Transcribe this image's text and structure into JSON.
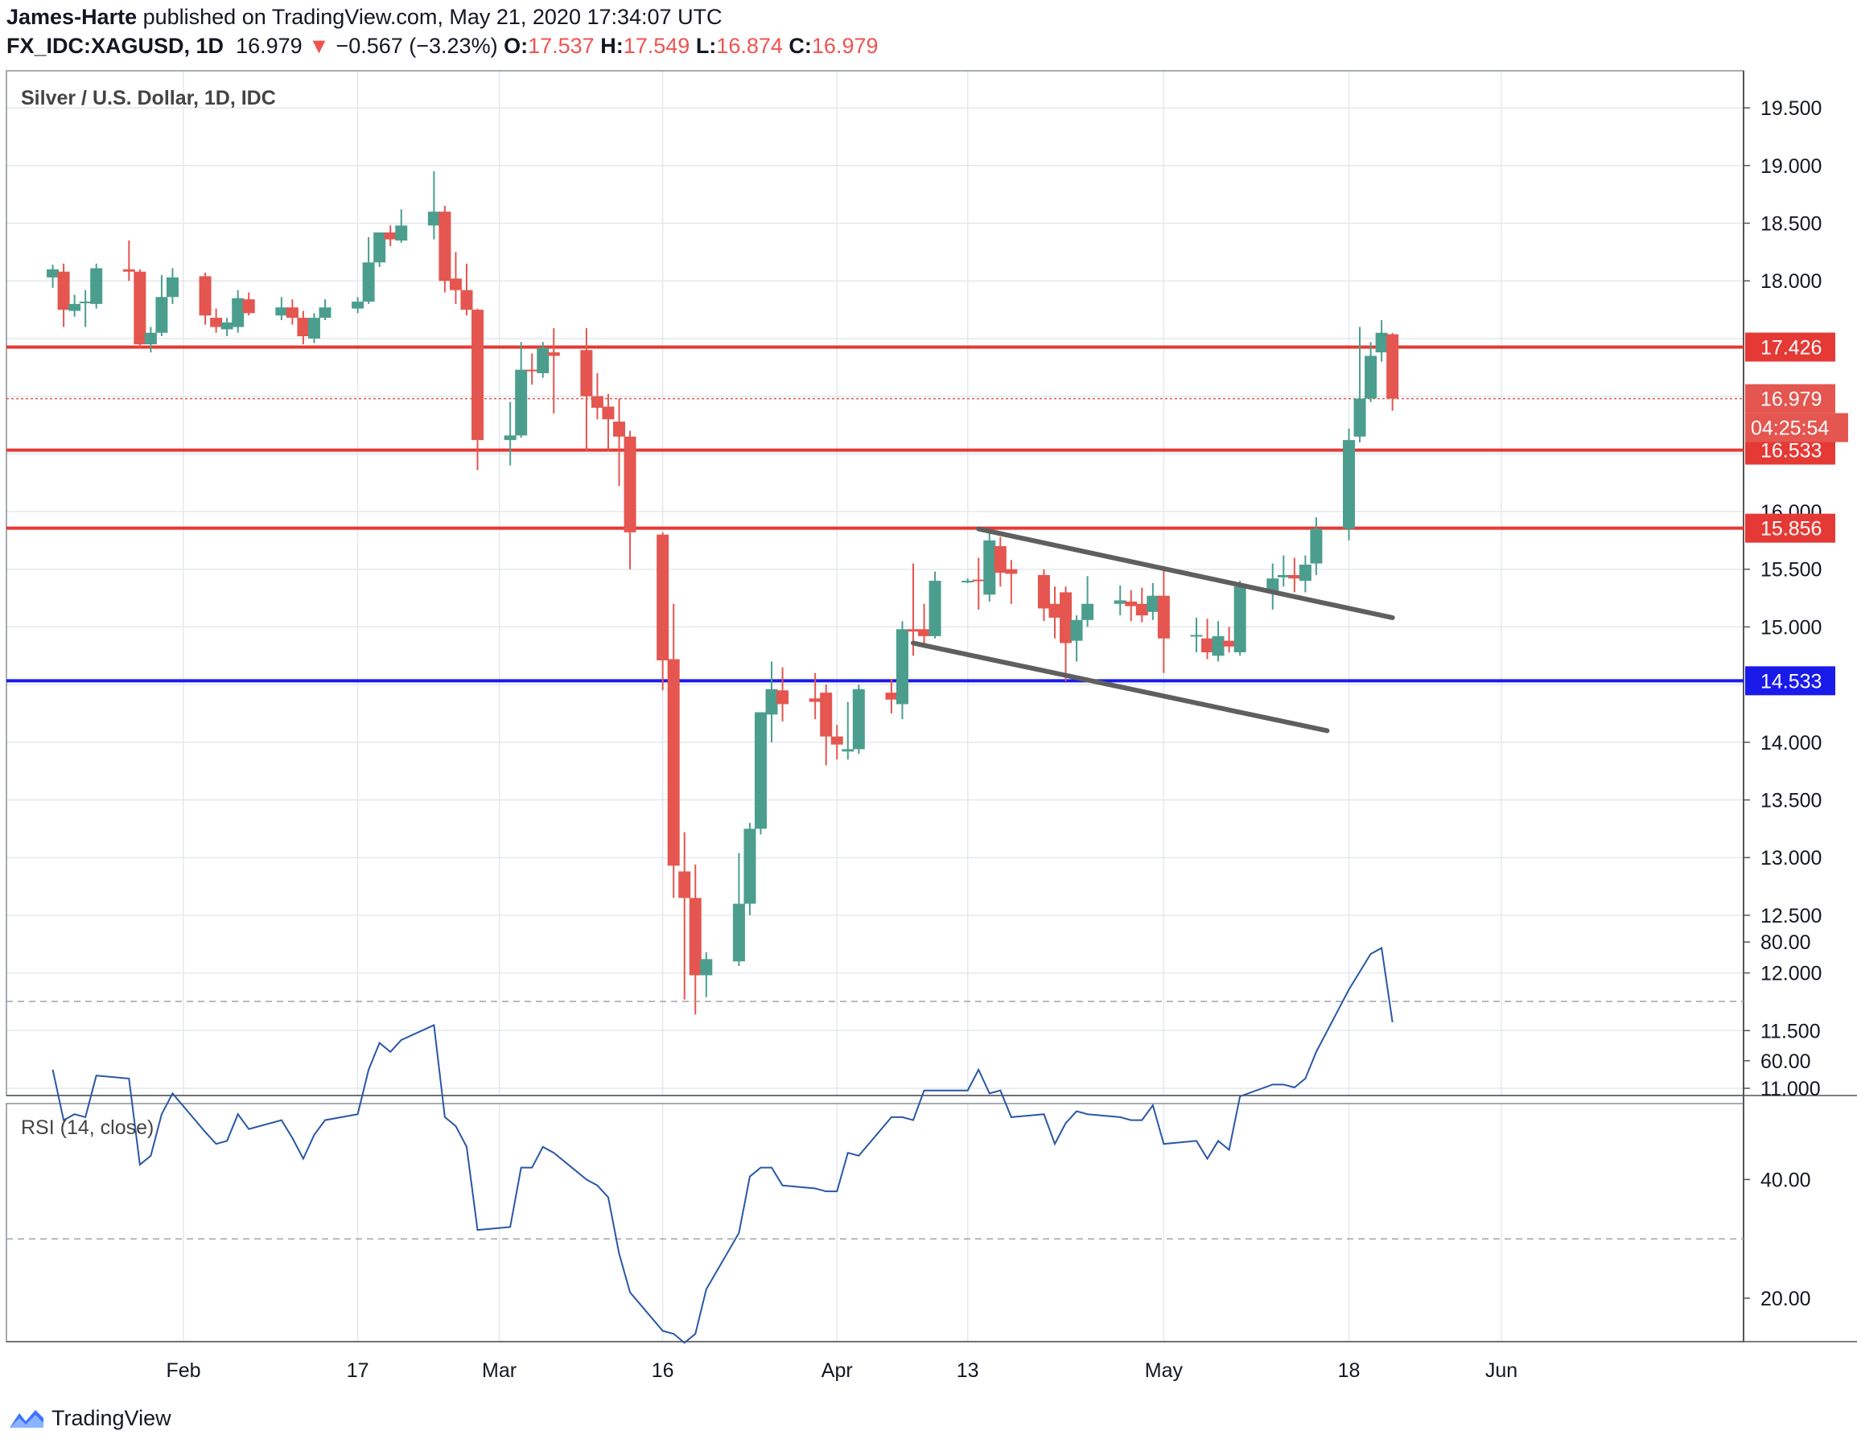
{
  "header": {
    "author": "James-Harte",
    "published": "published on TradingView.com, May 21, 2020 17:34:07 UTC",
    "symbol": "FX_IDC:XAGUSD, 1D",
    "last": "16.979",
    "change": "−0.567 (−3.23%)",
    "o_label": "O:",
    "o": "17.537",
    "h_label": "H:",
    "h": "17.549",
    "l_label": "L:",
    "l": "16.874",
    "c_label": "C:",
    "c": "16.979",
    "change_arrow": "▼"
  },
  "footer": {
    "brand": "TradingView",
    "logo_icon": "tradingview-logo-icon"
  },
  "colors": {
    "up": "#4b9e8e",
    "down": "#e4564f",
    "level": "#e53935",
    "support": "#1a1aeb",
    "rsi": "#2a57a6",
    "trend": "#5f5f5f"
  },
  "chart_data": [
    {
      "type": "candlestick",
      "title": "Silver / U.S. Dollar, 1D, IDC",
      "ylim": [
        10.95,
        19.95
      ],
      "y_ticks": [
        "19.500",
        "19.000",
        "18.500",
        "18.000",
        "15.500",
        "15.000",
        "14.000",
        "13.500",
        "13.000",
        "12.500",
        "12.000",
        "11.500",
        "11.000"
      ],
      "x_ticks": [
        {
          "label": "Feb",
          "date": "2020-02-01"
        },
        {
          "label": "17",
          "date": "2020-02-17"
        },
        {
          "label": "Mar",
          "date": "2020-03-01"
        },
        {
          "label": "16",
          "date": "2020-03-16"
        },
        {
          "label": "Apr",
          "date": "2020-04-01"
        },
        {
          "label": "13",
          "date": "2020-04-13"
        },
        {
          "label": "May",
          "date": "2020-05-01"
        },
        {
          "label": "18",
          "date": "2020-05-18"
        },
        {
          "label": "Jun",
          "date": "2020-06-01"
        }
      ],
      "horizontal_levels": [
        {
          "value": 17.426,
          "label": "17.426",
          "style": "resistance"
        },
        {
          "value": 16.533,
          "label": "16.533",
          "style": "resistance"
        },
        {
          "value": 15.856,
          "label": "15.856",
          "style": "resistance"
        },
        {
          "value": 14.533,
          "label": "14.533",
          "style": "support"
        }
      ],
      "last_price": {
        "value": 16.979,
        "label": "16.979",
        "countdown": "04:25:54"
      },
      "partial_tick": "16.000",
      "trendlines": [
        {
          "from": {
            "date": "2020-04-14",
            "price": 15.85
          },
          "to": {
            "date": "2020-05-22",
            "price": 15.08
          }
        },
        {
          "from": {
            "date": "2020-04-08",
            "price": 14.86
          },
          "to": {
            "date": "2020-05-16",
            "price": 14.1
          }
        }
      ],
      "candles": [
        {
          "date": "2020-01-20",
          "o": 18.03,
          "h": 18.14,
          "l": 17.94,
          "c": 18.1
        },
        {
          "date": "2020-01-21",
          "o": 18.08,
          "h": 18.15,
          "l": 17.6,
          "c": 17.75
        },
        {
          "date": "2020-01-22",
          "o": 17.74,
          "h": 17.88,
          "l": 17.69,
          "c": 17.8
        },
        {
          "date": "2020-01-23",
          "o": 17.81,
          "h": 17.92,
          "l": 17.6,
          "c": 17.82
        },
        {
          "date": "2020-01-24",
          "o": 17.8,
          "h": 18.15,
          "l": 17.76,
          "c": 18.11
        },
        {
          "date": "2020-01-27",
          "o": 18.1,
          "h": 18.35,
          "l": 18.0,
          "c": 18.08
        },
        {
          "date": "2020-01-28",
          "o": 18.08,
          "h": 18.1,
          "l": 17.42,
          "c": 17.45
        },
        {
          "date": "2020-01-29",
          "o": 17.45,
          "h": 17.6,
          "l": 17.38,
          "c": 17.55
        },
        {
          "date": "2020-01-30",
          "o": 17.55,
          "h": 18.05,
          "l": 17.52,
          "c": 17.86
        },
        {
          "date": "2020-01-31",
          "o": 17.86,
          "h": 18.11,
          "l": 17.8,
          "c": 18.03
        },
        {
          "date": "2020-02-03",
          "o": 18.04,
          "h": 18.07,
          "l": 17.62,
          "c": 17.7
        },
        {
          "date": "2020-02-04",
          "o": 17.68,
          "h": 17.76,
          "l": 17.55,
          "c": 17.6
        },
        {
          "date": "2020-02-05",
          "o": 17.58,
          "h": 17.68,
          "l": 17.52,
          "c": 17.64
        },
        {
          "date": "2020-02-06",
          "o": 17.6,
          "h": 17.92,
          "l": 17.55,
          "c": 17.85
        },
        {
          "date": "2020-02-07",
          "o": 17.84,
          "h": 17.9,
          "l": 17.7,
          "c": 17.72
        },
        {
          "date": "2020-02-10",
          "o": 17.7,
          "h": 17.86,
          "l": 17.66,
          "c": 17.77
        },
        {
          "date": "2020-02-11",
          "o": 17.77,
          "h": 17.84,
          "l": 17.62,
          "c": 17.68
        },
        {
          "date": "2020-02-12",
          "o": 17.68,
          "h": 17.74,
          "l": 17.45,
          "c": 17.52
        },
        {
          "date": "2020-02-13",
          "o": 17.5,
          "h": 17.72,
          "l": 17.46,
          "c": 17.68
        },
        {
          "date": "2020-02-14",
          "o": 17.68,
          "h": 17.84,
          "l": 17.66,
          "c": 17.77
        },
        {
          "date": "2020-02-17",
          "o": 17.76,
          "h": 17.86,
          "l": 17.72,
          "c": 17.82
        },
        {
          "date": "2020-02-18",
          "o": 17.82,
          "h": 18.38,
          "l": 17.8,
          "c": 18.16
        },
        {
          "date": "2020-02-19",
          "o": 18.16,
          "h": 18.42,
          "l": 18.12,
          "c": 18.42
        },
        {
          "date": "2020-02-20",
          "o": 18.42,
          "h": 18.48,
          "l": 18.3,
          "c": 18.36
        },
        {
          "date": "2020-02-21",
          "o": 18.35,
          "h": 18.62,
          "l": 18.33,
          "c": 18.48
        },
        {
          "date": "2020-02-24",
          "o": 18.48,
          "h": 18.95,
          "l": 18.36,
          "c": 18.6
        },
        {
          "date": "2020-02-25",
          "o": 18.6,
          "h": 18.65,
          "l": 17.9,
          "c": 18.0
        },
        {
          "date": "2020-02-26",
          "o": 18.02,
          "h": 18.25,
          "l": 17.8,
          "c": 17.92
        },
        {
          "date": "2020-02-27",
          "o": 17.92,
          "h": 18.15,
          "l": 17.7,
          "c": 17.75
        },
        {
          "date": "2020-02-28",
          "o": 17.75,
          "h": 17.76,
          "l": 16.36,
          "c": 16.62
        },
        {
          "date": "2020-03-02",
          "o": 16.62,
          "h": 16.95,
          "l": 16.4,
          "c": 16.66
        },
        {
          "date": "2020-03-03",
          "o": 16.66,
          "h": 17.47,
          "l": 16.64,
          "c": 17.23
        },
        {
          "date": "2020-03-04",
          "o": 17.23,
          "h": 17.37,
          "l": 17.1,
          "c": 17.22
        },
        {
          "date": "2020-03-05",
          "o": 17.2,
          "h": 17.47,
          "l": 17.16,
          "c": 17.42
        },
        {
          "date": "2020-03-06",
          "o": 17.38,
          "h": 17.59,
          "l": 16.85,
          "c": 17.35
        },
        {
          "date": "2020-03-09",
          "o": 17.4,
          "h": 17.59,
          "l": 16.52,
          "c": 17.0
        },
        {
          "date": "2020-03-10",
          "o": 17.0,
          "h": 17.2,
          "l": 16.8,
          "c": 16.9
        },
        {
          "date": "2020-03-11",
          "o": 16.91,
          "h": 17.02,
          "l": 16.52,
          "c": 16.8
        },
        {
          "date": "2020-03-12",
          "o": 16.78,
          "h": 16.98,
          "l": 16.22,
          "c": 16.65
        },
        {
          "date": "2020-03-13",
          "o": 16.65,
          "h": 16.7,
          "l": 15.5,
          "c": 15.82
        },
        {
          "date": "2020-03-16",
          "o": 15.8,
          "h": 15.82,
          "l": 14.45,
          "c": 14.71
        },
        {
          "date": "2020-03-17",
          "o": 14.72,
          "h": 15.2,
          "l": 12.65,
          "c": 12.93
        },
        {
          "date": "2020-03-18",
          "o": 12.88,
          "h": 13.22,
          "l": 11.77,
          "c": 12.65
        },
        {
          "date": "2020-03-19",
          "o": 12.65,
          "h": 12.94,
          "l": 11.64,
          "c": 11.98
        },
        {
          "date": "2020-03-20",
          "o": 11.98,
          "h": 12.18,
          "l": 11.79,
          "c": 12.12
        },
        {
          "date": "2020-03-23",
          "o": 12.1,
          "h": 13.04,
          "l": 12.06,
          "c": 12.6
        },
        {
          "date": "2020-03-24",
          "o": 12.6,
          "h": 13.3,
          "l": 12.5,
          "c": 13.25
        },
        {
          "date": "2020-03-25",
          "o": 13.25,
          "h": 14.26,
          "l": 13.2,
          "c": 14.26
        },
        {
          "date": "2020-03-26",
          "o": 14.24,
          "h": 14.7,
          "l": 14.0,
          "c": 14.46
        },
        {
          "date": "2020-03-27",
          "o": 14.45,
          "h": 14.65,
          "l": 14.18,
          "c": 14.33
        },
        {
          "date": "2020-03-30",
          "o": 14.38,
          "h": 14.6,
          "l": 14.2,
          "c": 14.35
        },
        {
          "date": "2020-03-31",
          "o": 14.43,
          "h": 14.5,
          "l": 13.8,
          "c": 14.05
        },
        {
          "date": "2020-04-01",
          "o": 14.05,
          "h": 14.15,
          "l": 13.85,
          "c": 13.98
        },
        {
          "date": "2020-04-02",
          "o": 13.92,
          "h": 14.35,
          "l": 13.85,
          "c": 13.94
        },
        {
          "date": "2020-04-03",
          "o": 13.94,
          "h": 14.5,
          "l": 13.9,
          "c": 14.46
        },
        {
          "date": "2020-04-06",
          "o": 14.43,
          "h": 14.55,
          "l": 14.25,
          "c": 14.37
        },
        {
          "date": "2020-04-07",
          "o": 14.33,
          "h": 15.05,
          "l": 14.2,
          "c": 14.98
        },
        {
          "date": "2020-04-08",
          "o": 14.98,
          "h": 15.55,
          "l": 14.75,
          "c": 14.96
        },
        {
          "date": "2020-04-09",
          "o": 14.98,
          "h": 15.2,
          "l": 14.85,
          "c": 14.92
        },
        {
          "date": "2020-04-10",
          "o": 14.92,
          "h": 15.48,
          "l": 14.9,
          "c": 15.4
        },
        {
          "date": "2020-04-13",
          "o": 15.4,
          "h": 15.42,
          "l": 15.38,
          "c": 15.4
        },
        {
          "date": "2020-04-14",
          "o": 15.41,
          "h": 15.6,
          "l": 15.15,
          "c": 15.4
        },
        {
          "date": "2020-04-15",
          "o": 15.28,
          "h": 15.82,
          "l": 15.22,
          "c": 15.75
        },
        {
          "date": "2020-04-16",
          "o": 15.7,
          "h": 15.78,
          "l": 15.35,
          "c": 15.47
        },
        {
          "date": "2020-04-17",
          "o": 15.5,
          "h": 15.58,
          "l": 15.2,
          "c": 15.46
        },
        {
          "date": "2020-04-20",
          "o": 15.45,
          "h": 15.5,
          "l": 15.05,
          "c": 15.16
        },
        {
          "date": "2020-04-21",
          "o": 15.2,
          "h": 15.35,
          "l": 14.9,
          "c": 15.08
        },
        {
          "date": "2020-04-22",
          "o": 15.3,
          "h": 15.35,
          "l": 14.53,
          "c": 14.86
        },
        {
          "date": "2020-04-23",
          "o": 14.88,
          "h": 15.1,
          "l": 14.7,
          "c": 15.06
        },
        {
          "date": "2020-04-24",
          "o": 15.06,
          "h": 15.44,
          "l": 15.0,
          "c": 15.2
        },
        {
          "date": "2020-04-27",
          "o": 15.2,
          "h": 15.36,
          "l": 15.1,
          "c": 15.23
        },
        {
          "date": "2020-04-28",
          "o": 15.22,
          "h": 15.32,
          "l": 15.05,
          "c": 15.18
        },
        {
          "date": "2020-04-29",
          "o": 15.2,
          "h": 15.34,
          "l": 15.04,
          "c": 15.1
        },
        {
          "date": "2020-04-30",
          "o": 15.13,
          "h": 15.38,
          "l": 15.06,
          "c": 15.27
        },
        {
          "date": "2020-05-01",
          "o": 15.27,
          "h": 15.49,
          "l": 14.6,
          "c": 14.9
        },
        {
          "date": "2020-05-04",
          "o": 14.93,
          "h": 15.08,
          "l": 14.78,
          "c": 14.93
        },
        {
          "date": "2020-05-05",
          "o": 14.9,
          "h": 15.07,
          "l": 14.72,
          "c": 14.78
        },
        {
          "date": "2020-05-06",
          "o": 14.75,
          "h": 15.05,
          "l": 14.7,
          "c": 14.92
        },
        {
          "date": "2020-05-07",
          "o": 14.88,
          "h": 15.0,
          "l": 14.78,
          "c": 14.83
        },
        {
          "date": "2020-05-08",
          "o": 14.78,
          "h": 15.4,
          "l": 14.75,
          "c": 15.35
        },
        {
          "date": "2020-05-11",
          "o": 15.3,
          "h": 15.55,
          "l": 15.15,
          "c": 15.42
        },
        {
          "date": "2020-05-12",
          "o": 15.43,
          "h": 15.62,
          "l": 15.35,
          "c": 15.45
        },
        {
          "date": "2020-05-13",
          "o": 15.45,
          "h": 15.6,
          "l": 15.3,
          "c": 15.42
        },
        {
          "date": "2020-05-14",
          "o": 15.4,
          "h": 15.62,
          "l": 15.3,
          "c": 15.54
        },
        {
          "date": "2020-05-15",
          "o": 15.55,
          "h": 15.95,
          "l": 15.45,
          "c": 15.85
        },
        {
          "date": "2020-05-18",
          "o": 15.85,
          "h": 16.72,
          "l": 15.75,
          "c": 16.62
        },
        {
          "date": "2020-05-19",
          "o": 16.65,
          "h": 17.6,
          "l": 16.6,
          "c": 16.98
        },
        {
          "date": "2020-05-20",
          "o": 16.98,
          "h": 17.47,
          "l": 16.95,
          "c": 17.35
        },
        {
          "date": "2020-05-21",
          "o": 17.38,
          "h": 17.66,
          "l": 17.3,
          "c": 17.55
        },
        {
          "date": "2020-05-22",
          "o": 17.537,
          "h": 17.549,
          "l": 16.874,
          "c": 16.979
        }
      ]
    },
    {
      "type": "line",
      "title": "RSI (14, close)",
      "ylim": [
        5,
        85
      ],
      "y_ticks": [
        "80.00",
        "60.00",
        "40.00",
        "20.00"
      ],
      "bands": [
        70,
        30
      ],
      "series": [
        {
          "values": [
            58.5,
            50,
            51,
            50.5,
            57.5,
            57,
            42.5,
            44,
            51,
            54.5,
            48,
            46,
            46.5,
            51,
            48.5,
            50,
            47,
            43.5,
            47.5,
            50,
            51,
            58.5,
            63,
            61.5,
            63.5,
            66,
            50.5,
            49,
            45.5,
            31.5,
            32,
            42,
            42,
            45.5,
            44.5,
            40,
            39,
            37,
            27.5,
            21,
            14.5,
            14,
            12.5,
            14,
            21.5,
            31,
            40.5,
            42,
            42,
            39,
            38.5,
            38,
            38,
            44.5,
            44,
            50.5,
            50.5,
            50,
            55,
            55,
            55,
            58.5,
            54.5,
            55,
            50.5,
            51,
            46,
            49.5,
            51.5,
            51,
            50.5,
            50,
            50,
            52.5,
            46,
            46.5,
            43.5,
            46.5,
            45,
            54,
            56,
            56,
            55.5,
            57,
            61.5,
            72,
            75,
            78,
            79,
            66.5
          ]
        }
      ]
    }
  ]
}
